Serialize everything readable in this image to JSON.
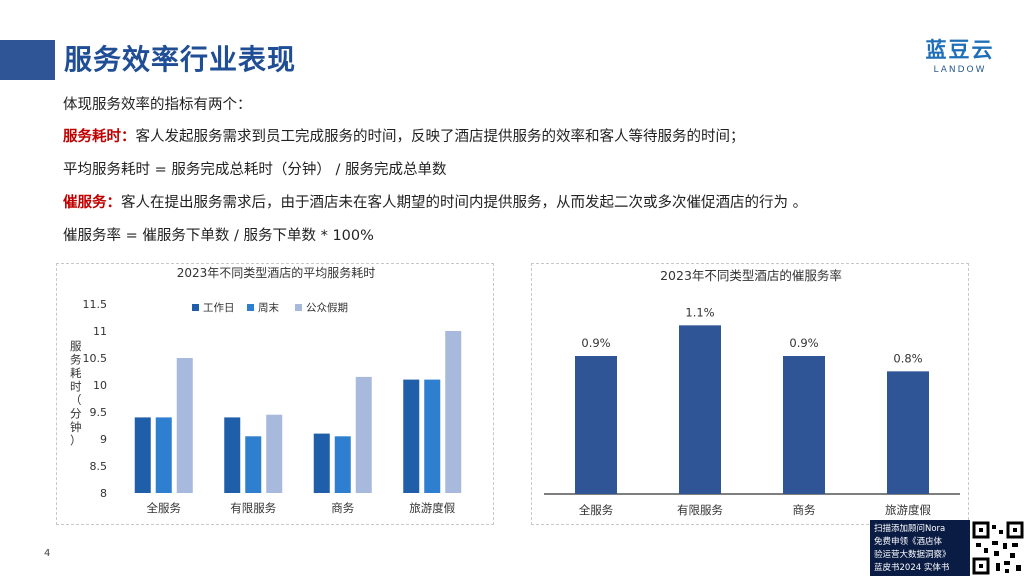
{
  "header": {
    "title": "服务效率行业表现",
    "logo_cn": "蓝豆云",
    "logo_en": "LANDOW"
  },
  "body": {
    "intro": "体现服务效率的指标有两个：",
    "term1": "服务耗时：",
    "term1_desc": "客人发起服务需求到员工完成服务的时间，反映了酒店提供服务的效率和客人等待服务的时间；",
    "formula1": "平均服务耗时 = 服务完成总耗时（分钟） / 服务完成总单数",
    "term2": "催服务：",
    "term2_desc": "客人在提出服务需求后，由于酒店未在客人期望的时间内提供服务，从而发起二次或多次催促酒店的行为 。",
    "formula2": "催服务率 = 催服务下单数 / 服务下单数 * 100%"
  },
  "chart_data": [
    {
      "type": "bar",
      "title": "2023年不同类型酒店的平均服务耗时",
      "ylabel": "服务耗时（分钟）",
      "xlabel": "",
      "categories": [
        "全服务",
        "有限服务",
        "商务",
        "旅游度假"
      ],
      "series": [
        {
          "name": "工作日",
          "color": "#1f5ea8",
          "values": [
            9.4,
            9.4,
            9.1,
            10.1
          ]
        },
        {
          "name": "周末",
          "color": "#2f7fd0",
          "values": [
            9.4,
            9.05,
            9.05,
            10.1
          ]
        },
        {
          "name": "公众假期",
          "color": "#a7b9dc",
          "values": [
            10.5,
            9.45,
            10.15,
            11.0
          ]
        }
      ],
      "ylim": [
        8,
        11.5
      ],
      "yticks": [
        "8",
        "8.5",
        "9",
        "9.5",
        "10",
        "10.5",
        "11",
        "11.5"
      ],
      "legend": "top"
    },
    {
      "type": "bar",
      "title": "2023年不同类型酒店的催服务率",
      "xlabel": "",
      "ylabel": "",
      "categories": [
        "全服务",
        "有限服务",
        "商务",
        "旅游度假"
      ],
      "values": [
        0.9,
        1.1,
        0.9,
        0.8
      ],
      "data_labels": [
        "0.9%",
        "1.1%",
        "0.9%",
        "0.8%"
      ],
      "color": "#2f5597",
      "ylim": [
        0,
        1.2
      ]
    }
  ],
  "footer": {
    "page_number": "4",
    "promo_lines": [
      "扫描添加顾问Nora",
      "免费申领《酒店体",
      "验运营大数据洞察》",
      "蓝皮书2024 实体书"
    ]
  }
}
